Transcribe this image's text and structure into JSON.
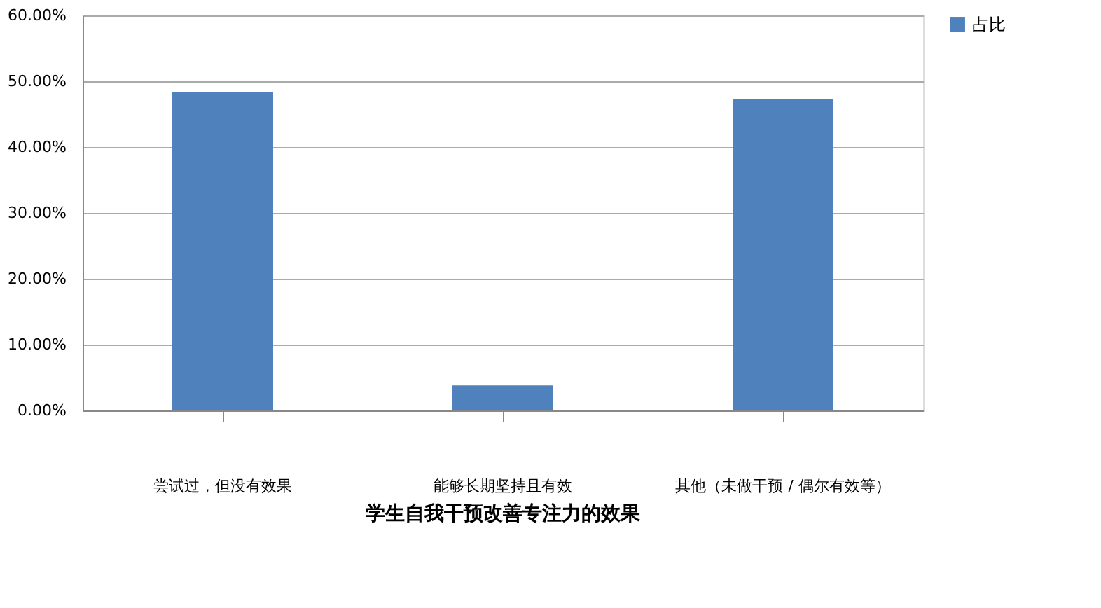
{
  "chart_data": {
    "type": "bar",
    "title": "学生自我干预改善专注力的效果",
    "categories": [
      "尝试过，但没有效果",
      "能够长期坚持且有效",
      "其他（未做干预 / 偶尔有效等）"
    ],
    "series": [
      {
        "name": "占比",
        "color": "#4f81bd",
        "values": [
          48.3,
          3.8,
          47.3
        ]
      }
    ],
    "ylim": [
      0,
      60
    ],
    "yticks": [
      {
        "value": 0,
        "label": "0.00%"
      },
      {
        "value": 10,
        "label": "10.00%"
      },
      {
        "value": 20,
        "label": "20.00%"
      },
      {
        "value": 30,
        "label": "30.00%"
      },
      {
        "value": 40,
        "label": "40.00%"
      },
      {
        "value": 50,
        "label": "50.00%"
      },
      {
        "value": 60,
        "label": "60.00%"
      }
    ],
    "grid": "y",
    "legend": "right"
  }
}
